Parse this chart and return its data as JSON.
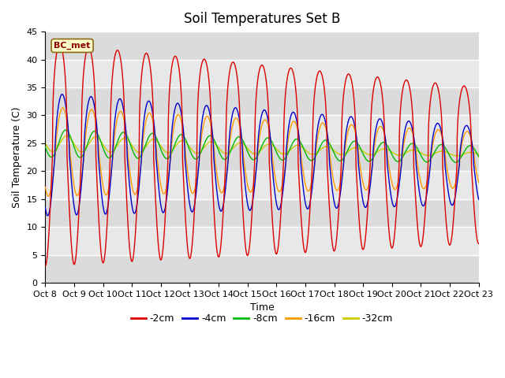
{
  "title": "Soil Temperatures Set B",
  "xlabel": "Time",
  "ylabel": "Soil Temperature (C)",
  "ylim": [
    0,
    45
  ],
  "annotation": "BC_met",
  "xtick_labels": [
    "Oct 8",
    "Oct 9",
    "Oct 10",
    "Oct 11",
    "Oct 12",
    "Oct 13",
    "Oct 14",
    "Oct 15",
    "Oct 16",
    "Oct 17",
    "Oct 18",
    "Oct 19",
    "Oct 20",
    "Oct 21",
    "Oct 22",
    "Oct 23"
  ],
  "legend_labels": [
    "-2cm",
    "-4cm",
    "-8cm",
    "-16cm",
    "-32cm"
  ],
  "line_colors": [
    "#dd0000",
    "#0000cc",
    "#00bb00",
    "#ff9900",
    "#cccc00"
  ],
  "background_color": "#ffffff",
  "plot_bg_color": "#e8e8e8",
  "grid_color": "#ffffff",
  "title_fontsize": 12,
  "label_fontsize": 9,
  "tick_fontsize": 8,
  "ytick_labels": [
    "0",
    "5",
    "10",
    "15",
    "20",
    "25",
    "30",
    "35",
    "40",
    "45"
  ],
  "ytick_values": [
    0,
    5,
    10,
    15,
    20,
    25,
    30,
    35,
    40,
    45
  ]
}
